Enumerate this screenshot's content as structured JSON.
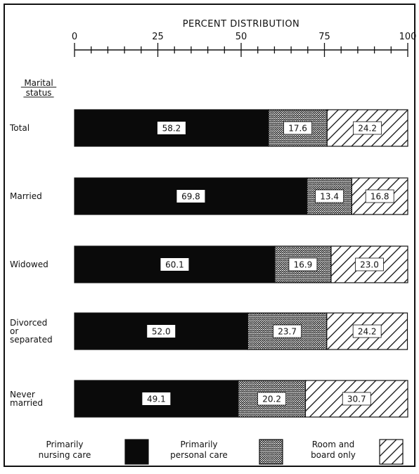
{
  "chart_data": {
    "type": "bar",
    "orientation": "horizontal",
    "stacked": true,
    "title": "PERCENT DISTRIBUTION",
    "xlim": [
      0,
      100
    ],
    "xticks": [
      "0",
      "25",
      "50",
      "75",
      "100"
    ],
    "category_header": [
      "Marital",
      "status"
    ],
    "categories": [
      [
        "Total"
      ],
      [
        "Married"
      ],
      [
        "Widowed"
      ],
      [
        "Divorced",
        "or",
        "separated"
      ],
      [
        "Never",
        "married"
      ]
    ],
    "series": [
      {
        "name": [
          "Primarily",
          "nursing care"
        ],
        "pattern": "solid-black",
        "values": [
          58.2,
          69.8,
          60.1,
          52.0,
          49.1
        ],
        "labels": [
          "58.2",
          "69.8",
          "60.1",
          "52.0",
          "49.1"
        ]
      },
      {
        "name": [
          "Primarily",
          "personal care"
        ],
        "pattern": "zigzag-crosshatch",
        "values": [
          17.6,
          13.4,
          16.9,
          23.7,
          20.2
        ],
        "labels": [
          "17.6",
          "13.4",
          "16.9",
          "23.7",
          "20.2"
        ]
      },
      {
        "name": [
          "Room and",
          "board only"
        ],
        "pattern": "diagonal-hatch",
        "values": [
          24.2,
          16.8,
          23.0,
          24.2,
          30.7
        ],
        "labels": [
          "24.2",
          "16.8",
          "23.0",
          "24.2",
          "30.7"
        ]
      }
    ],
    "legend_placement": "bottom",
    "grid": false
  }
}
